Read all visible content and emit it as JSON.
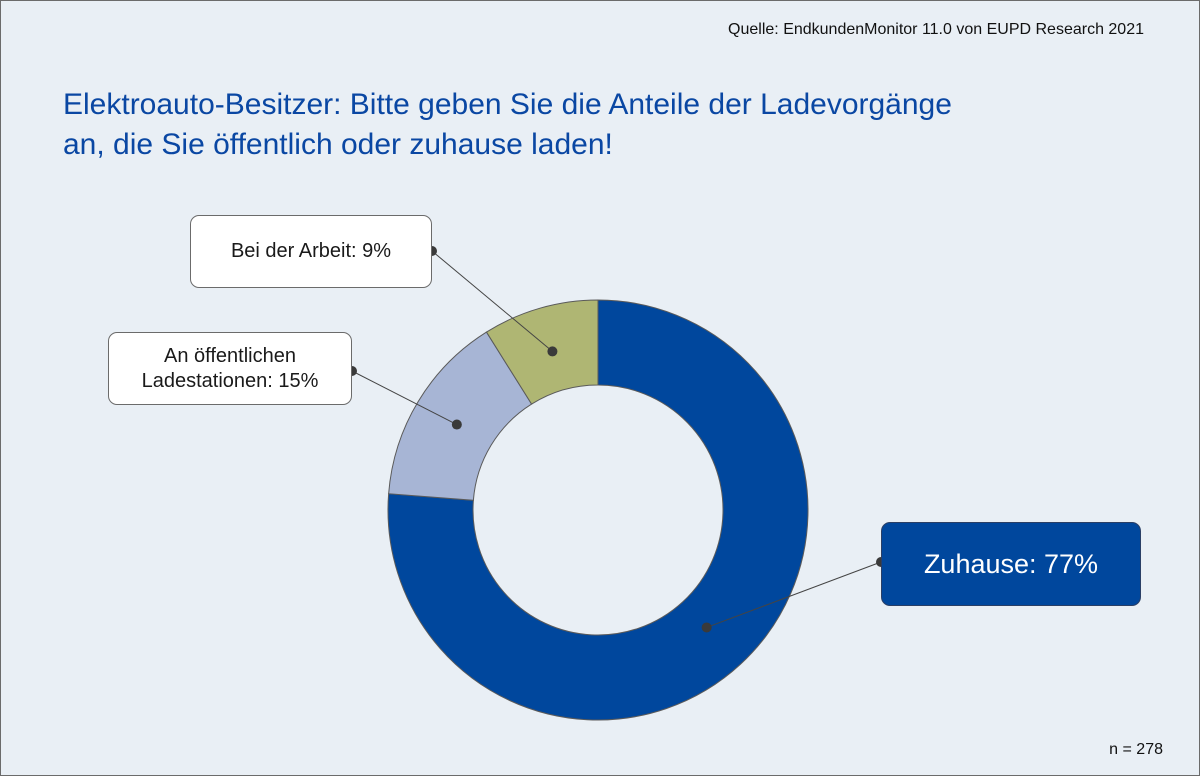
{
  "source": "Quelle: EndkundenMonitor 11.0 von EUPD Research 2021",
  "title_line1": "Elektroauto-Besitzer: Bitte geben Sie die Anteile der Ladevorgänge",
  "title_line2": "an, die Sie öffentlich oder zuhause laden!",
  "sample_size": "n = 278",
  "chart_data": {
    "type": "pie",
    "style": "donut",
    "slices": [
      {
        "label": "Zuhause",
        "value": 77,
        "display": "Zuhause: 77%",
        "color": "#00479d"
      },
      {
        "label": "An öffentlichen Ladestationen",
        "value": 15,
        "display_line1": "An öffentlichen",
        "display_line2": "Ladestationen: 15%",
        "color": "#a7b5d5"
      },
      {
        "label": "Bei der Arbeit",
        "value": 9,
        "display": "Bei der Arbeit: 9%",
        "color": "#afb673"
      }
    ]
  }
}
